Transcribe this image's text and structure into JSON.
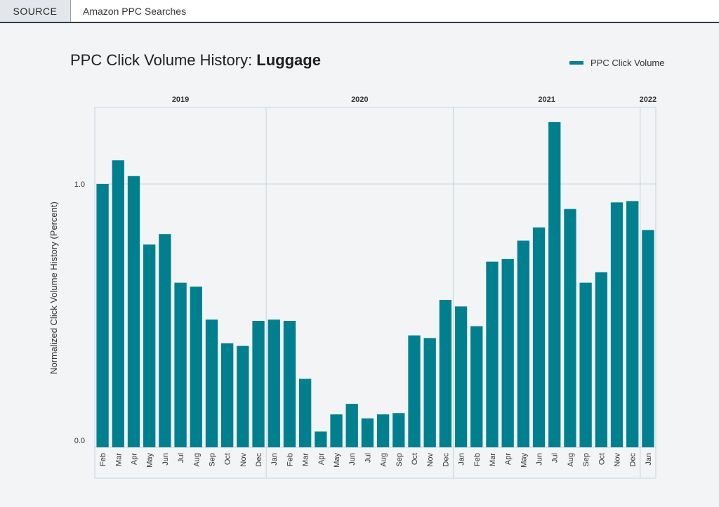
{
  "source_bar": {
    "tab_label": "SOURCE",
    "value": "Amazon PPC Searches"
  },
  "title": {
    "prefix": "PPC Click Volume History: ",
    "subject": "Luggage"
  },
  "legend": {
    "label": "PPC Click Volume",
    "color": "#00808f"
  },
  "chart_data": {
    "type": "bar",
    "title": "PPC Click Volume History: Luggage",
    "ylabel": "Normalized Click Volume History (Percent)",
    "xlabel": "",
    "ylim": [
      0,
      1.24
    ],
    "yticks": [
      "0.0",
      "1.0"
    ],
    "years": [
      "2019",
      "2020",
      "2021",
      "2022"
    ],
    "grid": true,
    "legend_position": "top-right",
    "categories": [
      "Feb",
      "Mar",
      "Apr",
      "May",
      "Jun",
      "Jul",
      "Aug",
      "Sep",
      "Oct",
      "Nov",
      "Dec",
      "Jan",
      "Feb",
      "Mar",
      "Apr",
      "May",
      "Jun",
      "Jul",
      "Aug",
      "Sep",
      "Oct",
      "Nov",
      "Dec",
      "Jan",
      "Feb",
      "Mar",
      "Apr",
      "May",
      "Jun",
      "Jul",
      "Aug",
      "Sep",
      "Oct",
      "Nov",
      "Dec",
      "Jan"
    ],
    "series": [
      {
        "name": "PPC Click Volume",
        "values": [
          1.0,
          1.09,
          1.03,
          0.77,
          0.81,
          0.625,
          0.61,
          0.485,
          0.395,
          0.385,
          0.48,
          0.485,
          0.48,
          0.26,
          0.06,
          0.125,
          0.165,
          0.11,
          0.125,
          0.13,
          0.425,
          0.415,
          0.56,
          0.535,
          0.46,
          0.705,
          0.715,
          0.785,
          0.835,
          1.235,
          0.905,
          0.625,
          0.665,
          0.93,
          0.935,
          0.825
        ]
      }
    ]
  }
}
